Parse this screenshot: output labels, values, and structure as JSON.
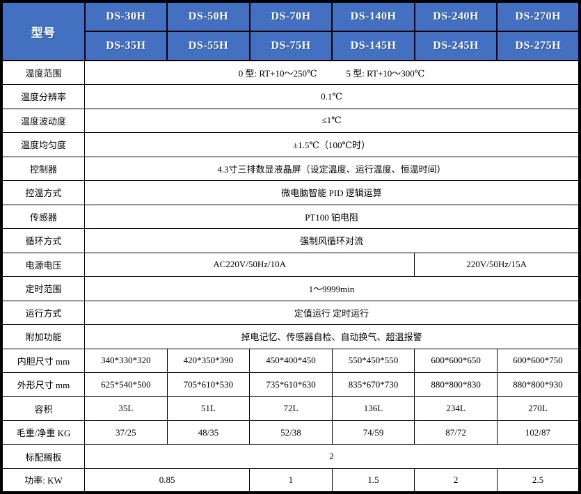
{
  "header": {
    "model_label": "型号",
    "models_row1": [
      "DS-30H",
      "DS-50H",
      "DS-70H",
      "DS-140H",
      "DS-240H",
      "DS-270H"
    ],
    "models_row2": [
      "DS-35H",
      "DS-55H",
      "DS-75H",
      "DS-145H",
      "DS-245H",
      "DS-275H"
    ]
  },
  "specs": {
    "temp_range": {
      "label": "温度范围",
      "value_a": "0 型: RT+10～250℃",
      "value_b": "5 型: RT+10～300℃"
    },
    "temp_resolution": {
      "label": "温度分辨率",
      "value": "0.1℃"
    },
    "temp_fluctuation": {
      "label": "温度波动度",
      "value": "≤1℃"
    },
    "temp_uniformity": {
      "label": "温度均匀度",
      "value": "±1.5℃（100℃时）"
    },
    "controller": {
      "label": "控制器",
      "value": "4.3寸三排数显液晶屏（设定温度、运行温度、恒温时间）"
    },
    "control_mode": {
      "label": "控温方式",
      "value": "微电脑智能 PID 逻辑运算"
    },
    "sensor": {
      "label": "传感器",
      "value": "PT100 铂电阻"
    },
    "circulation": {
      "label": "循环方式",
      "value": "强制风循环对流"
    },
    "power_supply": {
      "label": "电源电压",
      "value_left": "AC220V/50Hz/10A",
      "value_right": "220V/50Hz/15A"
    },
    "timer_range": {
      "label": "定时范围",
      "value": "1～9999min"
    },
    "run_mode": {
      "label": "运行方式",
      "value": "定值运行 定时运行"
    },
    "extra_functions": {
      "label": "附加功能",
      "value": "掉电记忆、传感器自检、自动换气、超温报警"
    },
    "inner_size": {
      "label": "内胆尺寸 mm",
      "values": [
        "340*330*320",
        "420*350*390",
        "450*400*450",
        "550*450*550",
        "600*600*650",
        "600*600*750"
      ]
    },
    "outer_size": {
      "label": "外形尺寸 mm",
      "values": [
        "625*540*500",
        "705*610*530",
        "735*610*630",
        "835*670*730",
        "880*800*830",
        "880*800*930"
      ]
    },
    "volume": {
      "label": "容积",
      "values": [
        "35L",
        "51L",
        "72L",
        "136L",
        "234L",
        "270L"
      ]
    },
    "weight": {
      "label": "毛重/净重 KG",
      "values": [
        "37/25",
        "48/35",
        "52/38",
        "74/59",
        "87/72",
        "102/87"
      ]
    },
    "shelves": {
      "label": "标配搁板",
      "value": "2"
    },
    "power": {
      "label": "功率: KW",
      "values": [
        "0.85",
        "1",
        "1.5",
        "2",
        "2.5"
      ]
    }
  },
  "colors": {
    "header_bg": "#4470c2",
    "header_text": "#ffffff",
    "border": "#000000",
    "body_bg": "#ffffff"
  }
}
